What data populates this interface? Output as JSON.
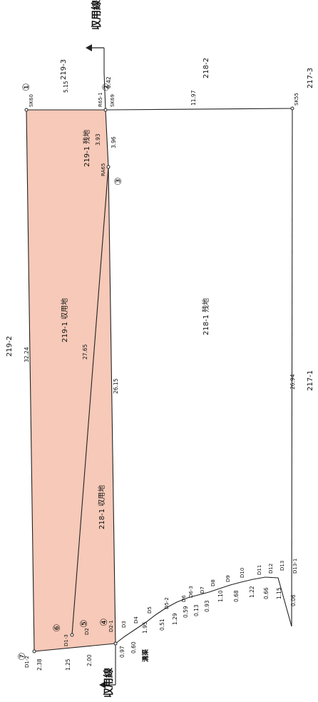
{
  "acquisition_line_label": "収用線",
  "parcel_labels": {
    "p219_3": "219-3",
    "p218_2": "218-2",
    "p217_3": "217-3",
    "p219_2": "219-2",
    "p219_1_expropriated": "219-1 収用地",
    "p219_1_remainder": "219-1 残地",
    "p218_1_remainder": "218-1 残地",
    "p218_1_expropriated": "218-1 収用地",
    "p217_1": "217-1"
  },
  "point_numbers": {
    "pt1": "①",
    "pt2": "②",
    "pt3": "③",
    "pt4": "④",
    "pt5": "⑤",
    "pt6": "⑥",
    "pt7": "⑦"
  },
  "point_codes": {
    "sk60": "SK60",
    "sk69": "SK69",
    "r65_1": "R65-1",
    "sk55": "SK55",
    "ra65": "RA65",
    "d1_2": "D1-2",
    "d1_3": "D1-3",
    "d2": "D2",
    "d2_1": "D2-1",
    "d3": "D3",
    "d4": "D4",
    "d5": "D5",
    "d5_2": "D5-2",
    "d6": "D6",
    "d6_3": "D6-3",
    "d7": "D7",
    "d8": "D8",
    "d9": "D9",
    "d10": "D10",
    "d11": "D11",
    "d12": "D12",
    "d13": "D13",
    "d13_1": "D13-1"
  },
  "distances": {
    "d_5_15": "5.15",
    "d_0_42": "0.42",
    "d_11_97": "11.97",
    "d_3_93": "3.93",
    "d_3_96": "3.96",
    "d_32_24": "32.24",
    "d_27_65": "27.65",
    "d_26_15": "26.15",
    "d_26_94": "26.94",
    "d_2_38": "2.38",
    "d_1_25": "1.25",
    "d_2_00": "2.00",
    "d_0_97": "0.97",
    "d_0_60": "0.60",
    "d_1_95": "1.95",
    "d_0_51": "0.51",
    "d_1_29": "1.29",
    "d_0_59": "0.59",
    "d_0_13": "0.13",
    "d_0_93": "0.93",
    "d_1_10": "1.10",
    "d_0_68": "0.68",
    "d_1_22": "1.22",
    "d_0_66": "0.66",
    "d_1_15": "1.15",
    "d_0_06": "0.06"
  },
  "ditch_label": "溝渠",
  "colors": {
    "expropriated_fill": "#f6c9b8",
    "line": "#222222"
  }
}
